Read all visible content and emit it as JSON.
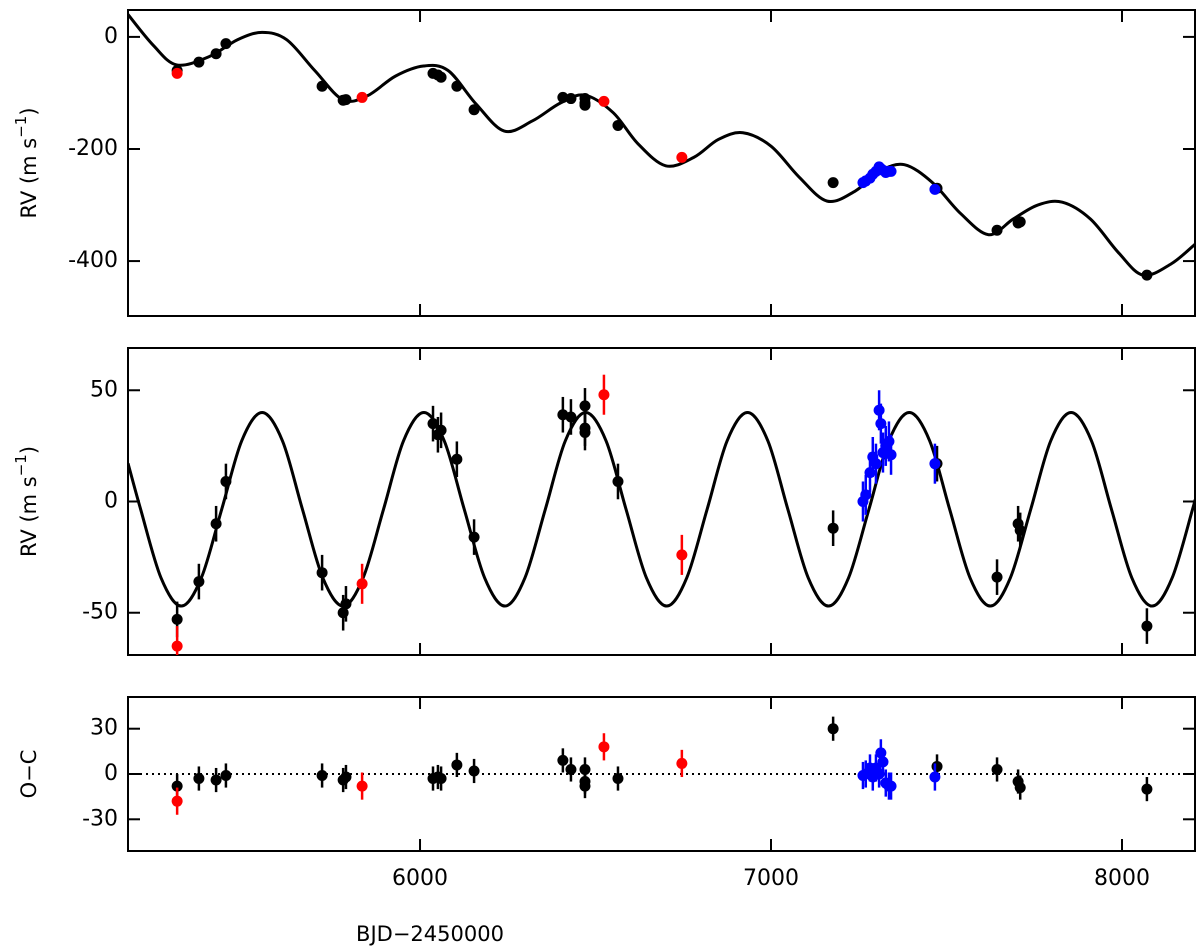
{
  "chart_data": [
    {
      "type": "scatter",
      "ylabel": [
        "RV (m s",
        "−1",
        ")"
      ],
      "xlim": [
        5168,
        8208
      ],
      "ylim": [
        -498,
        48
      ],
      "xticks": [
        6000,
        7000,
        8000
      ],
      "xtick_labels": false,
      "yticks": [
        -400,
        -200,
        0
      ],
      "series": [
        {
          "type": "line",
          "color": "#000000",
          "x": [
            5168,
            5240,
            5307,
            5400,
            5480,
            5550,
            5620,
            5700,
            5780,
            5850,
            5930,
            6010,
            6080,
            6160,
            6240,
            6320,
            6400,
            6470,
            6550,
            6620,
            6700,
            6780,
            6850,
            6920,
            7000,
            7080,
            7160,
            7240,
            7310,
            7380,
            7460,
            7540,
            7620,
            7690,
            7760,
            7830,
            7910,
            7990,
            8060,
            8140,
            8208
          ],
          "values": [
            40,
            -15,
            -50,
            -35,
            -5,
            8,
            -5,
            -60,
            -112,
            -105,
            -70,
            -52,
            -60,
            -120,
            -168,
            -150,
            -118,
            -104,
            -135,
            -190,
            -230,
            -215,
            -183,
            -171,
            -195,
            -250,
            -293,
            -275,
            -240,
            -228,
            -260,
            -315,
            -353,
            -325,
            -300,
            -295,
            -325,
            -385,
            -425,
            -405,
            -370
          ]
        },
        {
          "color": "#000000",
          "x": [
            5308,
            5370,
            5419,
            5447,
            5721,
            5781,
            5789,
            6037,
            6051,
            6060,
            6105,
            6154,
            6407,
            6430,
            6470,
            6470,
            6470,
            6564,
            7177,
            7473,
            7644,
            7704,
            7710,
            8071
          ],
          "values": [
            -60,
            -45,
            -30,
            -12,
            -88,
            -113,
            -112,
            -65,
            -68,
            -72,
            -88,
            -130,
            -108,
            -110,
            -110,
            -118,
            -122,
            -158,
            -260,
            -270,
            -345,
            -332,
            -330,
            -425
          ]
        },
        {
          "color": "#ff0000",
          "x": [
            5308,
            5835,
            6524,
            6746
          ],
          "values": [
            -65,
            -108,
            -115,
            -215
          ]
        },
        {
          "color": "#0000ff",
          "x": [
            7262,
            7270,
            7282,
            7290,
            7299,
            7308,
            7313,
            7319,
            7327,
            7336,
            7342,
            7467
          ],
          "values": [
            -260,
            -257,
            -252,
            -245,
            -240,
            -232,
            -235,
            -238,
            -242,
            -240,
            -240,
            -272
          ]
        }
      ]
    },
    {
      "type": "scatter",
      "ylabel": [
        "RV (m s",
        "−1",
        ")"
      ],
      "xlim": [
        5168,
        8208
      ],
      "ylim": [
        -69,
        69
      ],
      "xticks": [
        6000,
        7000,
        8000
      ],
      "xtick_labels": false,
      "yticks": [
        -50,
        0,
        50
      ],
      "series": [
        {
          "type": "line",
          "color": "#000000",
          "x": [
            5168,
            5204,
            5262,
            5320,
            5377,
            5435,
            5492,
            5550,
            5608,
            5665,
            5723,
            5781,
            5838,
            5896,
            5953,
            6011,
            6069,
            6126,
            6184,
            6242,
            6299,
            6357,
            6414,
            6472,
            6530,
            6587,
            6645,
            6703,
            6760,
            6818,
            6875,
            6933,
            6991,
            7048,
            7106,
            7164,
            7221,
            7279,
            7336,
            7394,
            7452,
            7509,
            7567,
            7625,
            7682,
            7740,
            7797,
            7855,
            7913,
            7970,
            8028,
            8086,
            8143,
            8201,
            8208
          ],
          "values": [
            17.2,
            -3.5,
            -34.3,
            -47,
            -34.3,
            -3.5,
            27.3,
            40,
            27.3,
            -3.5,
            -34.3,
            -47,
            -34.3,
            -3.5,
            27.3,
            40,
            27.3,
            -3.5,
            -34.3,
            -47,
            -34.3,
            -3.5,
            27.3,
            40,
            27.3,
            -3.5,
            -34.3,
            -47,
            -34.3,
            -3.5,
            27.3,
            40,
            27.3,
            -3.5,
            -34.3,
            -47,
            -34.3,
            -3.5,
            27.3,
            40,
            27.3,
            -3.5,
            -34.3,
            -47,
            -34.3,
            -3.5,
            27.3,
            40,
            27.3,
            -3.5,
            -34.3,
            -47,
            -34.3,
            -3.5,
            0.8
          ]
        },
        {
          "color": "#000000",
          "x": [
            5308,
            5370,
            5419,
            5447,
            5721,
            5781,
            5789,
            6037,
            6051,
            6060,
            6105,
            6154,
            6407,
            6430,
            6470,
            6470,
            6470,
            6564,
            7177,
            7473,
            7644,
            7704,
            7710,
            8071
          ],
          "values": [
            -53,
            -36,
            -10,
            9,
            -32,
            -50,
            -46,
            35,
            30,
            32,
            19,
            -16,
            39,
            38,
            43,
            33,
            31,
            9,
            -12,
            17,
            -34,
            -10,
            -13,
            -56
          ],
          "errors": [
            8,
            8,
            8,
            8,
            8,
            8,
            8,
            8,
            8,
            8,
            8,
            8,
            8,
            8,
            8,
            8,
            8,
            8,
            8,
            8,
            8,
            8,
            8,
            8
          ]
        },
        {
          "color": "#ff0000",
          "x": [
            5308,
            5835,
            6524,
            6746
          ],
          "values": [
            -65,
            -37,
            48,
            -24
          ],
          "errors": [
            9,
            9,
            9,
            9
          ]
        },
        {
          "color": "#0000ff",
          "x": [
            7262,
            7270,
            7282,
            7290,
            7299,
            7308,
            7313,
            7319,
            7327,
            7336,
            7342,
            7467
          ],
          "values": [
            0,
            3,
            13,
            20,
            17,
            41,
            35,
            22,
            25,
            27,
            21,
            17
          ],
          "errors": [
            9,
            9,
            9,
            9,
            9,
            9,
            9,
            9,
            9,
            9,
            9,
            9
          ]
        }
      ]
    },
    {
      "type": "scatter",
      "ylabel": "O−C",
      "xlabel": "BJD−2450000",
      "xlim": [
        5168,
        8208
      ],
      "ylim": [
        -51,
        51
      ],
      "xticks": [
        6000,
        7000,
        8000
      ],
      "xtick_labels": true,
      "yticks": [
        -30,
        0,
        30
      ],
      "zero_line": true,
      "series": [
        {
          "color": "#000000",
          "x": [
            5308,
            5370,
            5419,
            5447,
            5721,
            5781,
            5789,
            6037,
            6051,
            6060,
            6105,
            6154,
            6407,
            6430,
            6470,
            6470,
            6470,
            6564,
            7177,
            7473,
            7644,
            7704,
            7710,
            8071
          ],
          "values": [
            -8,
            -3,
            -4,
            -1,
            -1,
            -4,
            -2,
            -3,
            -2,
            -3,
            6,
            2,
            9,
            3,
            3,
            -5,
            -8,
            -3,
            30,
            5,
            3,
            -5,
            -9,
            -10
          ],
          "errors": [
            8,
            8,
            8,
            8,
            8,
            8,
            8,
            8,
            8,
            8,
            8,
            8,
            8,
            8,
            8,
            8,
            8,
            8,
            8,
            8,
            8,
            8,
            8,
            8
          ]
        },
        {
          "color": "#ff0000",
          "x": [
            5308,
            5835,
            6524,
            6746
          ],
          "values": [
            -18,
            -8,
            18,
            7
          ],
          "errors": [
            9,
            9,
            9,
            9
          ]
        },
        {
          "color": "#0000ff",
          "x": [
            7262,
            7270,
            7282,
            7290,
            7299,
            7308,
            7313,
            7319,
            7327,
            7336,
            7342,
            7467
          ],
          "values": [
            -1,
            0,
            4,
            -2,
            4,
            0,
            14,
            8,
            -6,
            -8,
            -8,
            -2
          ],
          "errors": [
            9,
            9,
            9,
            9,
            9,
            9,
            9,
            9,
            9,
            9,
            9,
            9
          ]
        }
      ]
    }
  ]
}
